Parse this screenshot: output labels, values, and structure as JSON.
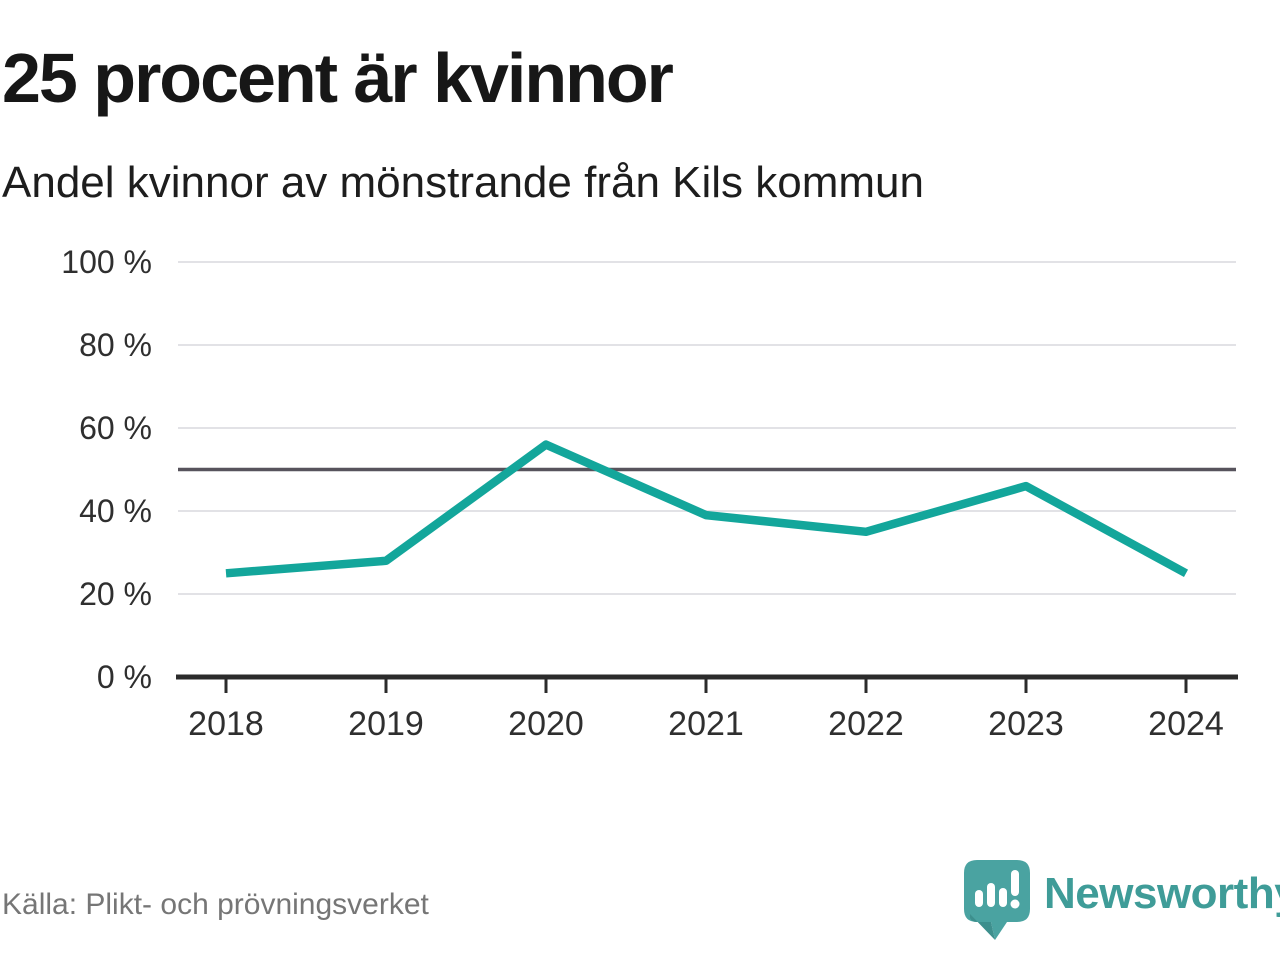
{
  "header": {
    "title": "25 procent är kvinnor",
    "subtitle": "Andel kvinnor av mönstrande från Kils kommun"
  },
  "footer": {
    "source": "Källa: Plikt- och prövningsverket",
    "brand": "Newsworthy"
  },
  "chart_data": {
    "type": "line",
    "title": "25 procent är kvinnor",
    "subtitle": "Andel kvinnor av mönstrande från Kils kommun",
    "categories": [
      "2018",
      "2019",
      "2020",
      "2021",
      "2022",
      "2023",
      "2024"
    ],
    "values": [
      25,
      28,
      56,
      39,
      35,
      46,
      25
    ],
    "series_name": "Andel kvinnor av mönstrande",
    "unit": "%",
    "ylim": [
      0,
      100
    ],
    "yticks": [
      0,
      20,
      40,
      60,
      80,
      100
    ],
    "ytick_labels": [
      "0 %",
      "20 %",
      "40 %",
      "60 %",
      "80 %",
      "100 %"
    ],
    "reference_line": 50,
    "grid": true,
    "legend": "none",
    "colors": {
      "line": "#13a69b",
      "reference": "#57535c",
      "grid": "#e2e2e6",
      "axis": "#2b2b2b",
      "tick_label": "#2f2f2f"
    }
  }
}
